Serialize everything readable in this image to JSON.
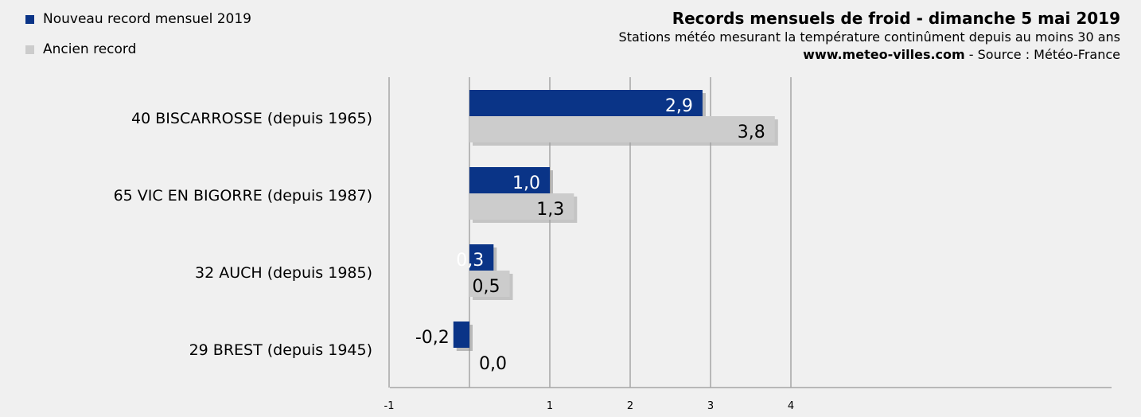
{
  "header": {
    "title": "Records mensuels de froid - dimanche 5 mai 2019",
    "subtitle": "Stations météo mesurant la température continûment depuis au moins 30 ans",
    "source_site": "www.meteo-villes.com",
    "source_rest": " - Source : Météo-France"
  },
  "colors": {
    "new_record": "#0a3487",
    "old_record": "#cccccc",
    "grid": "#a6a6a6",
    "background": "#f0f0f0"
  },
  "chart_data": {
    "type": "bar",
    "orientation": "horizontal",
    "categories": [
      "40 BISCARROSSE (depuis 1965)",
      "65 VIC EN BIGORRE (depuis 1987)",
      "32 AUCH (depuis 1985)",
      "29 BREST (depuis 1945)"
    ],
    "series": [
      {
        "name": "Nouveau record mensuel 2019",
        "values": [
          2.9,
          1.0,
          0.3,
          -0.2
        ],
        "labels": [
          "2,9",
          "1,0",
          "0,3",
          "-0,2"
        ]
      },
      {
        "name": "Ancien record",
        "values": [
          3.8,
          1.3,
          0.5,
          0.0
        ],
        "labels": [
          "3,8",
          "1,3",
          "0,5",
          "0,0"
        ]
      }
    ],
    "x_ticks": [
      "-1",
      "1",
      "2",
      "3",
      "4"
    ],
    "xlim": [
      -1,
      4.5
    ],
    "grid": "vertical",
    "legend_position": "top-left"
  }
}
